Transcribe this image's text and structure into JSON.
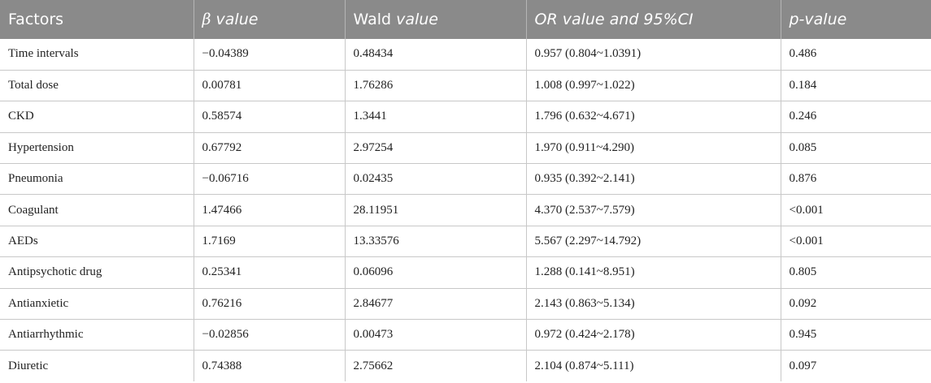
{
  "table": {
    "headers": {
      "factors": "Factors",
      "beta_symbol": "β",
      "beta_suffix": " value",
      "wald_word": "Wald",
      "wald_suffix": " value",
      "or_ci": "OR value and 95%CI",
      "p_value": "p-value"
    },
    "rows": [
      {
        "factor": "Time intervals",
        "beta": "−0.04389",
        "wald": "0.48434",
        "or_ci": "0.957 (0.804~1.0391)",
        "p": "0.486"
      },
      {
        "factor": "Total dose",
        "beta": "0.00781",
        "wald": "1.76286",
        "or_ci": "1.008 (0.997~1.022)",
        "p": "0.184"
      },
      {
        "factor": "CKD",
        "beta": "0.58574",
        "wald": "1.3441",
        "or_ci": "1.796 (0.632~4.671)",
        "p": "0.246"
      },
      {
        "factor": "Hypertension",
        "beta": "0.67792",
        "wald": "2.97254",
        "or_ci": "1.970 (0.911~4.290)",
        "p": "0.085"
      },
      {
        "factor": "Pneumonia",
        "beta": "−0.06716",
        "wald": "0.02435",
        "or_ci": "0.935 (0.392~2.141)",
        "p": "0.876"
      },
      {
        "factor": "Coagulant",
        "beta": "1.47466",
        "wald": "28.11951",
        "or_ci": "4.370 (2.537~7.579)",
        "p": "<0.001"
      },
      {
        "factor": "AEDs",
        "beta": "1.7169",
        "wald": "13.33576",
        "or_ci": "5.567 (2.297~14.792)",
        "p": "<0.001"
      },
      {
        "factor": "Antipsychotic drug",
        "beta": "0.25341",
        "wald": "0.06096",
        "or_ci": "1.288 (0.141~8.951)",
        "p": "0.805"
      },
      {
        "factor": "Antianxietic",
        "beta": "0.76216",
        "wald": "2.84677",
        "or_ci": "2.143 (0.863~5.134)",
        "p": "0.092"
      },
      {
        "factor": "Antiarrhythmic",
        "beta": "−0.02856",
        "wald": "0.00473",
        "or_ci": "0.972 (0.424~2.178)",
        "p": "0.945"
      },
      {
        "factor": "Diuretic",
        "beta": "0.74388",
        "wald": "2.75662",
        "or_ci": "2.104 (0.874~5.111)",
        "p": "0.097"
      }
    ]
  },
  "colors": {
    "header_bg": "#8a8a8a",
    "header_text": "#ffffff",
    "grid_line": "#c8c8c8"
  }
}
